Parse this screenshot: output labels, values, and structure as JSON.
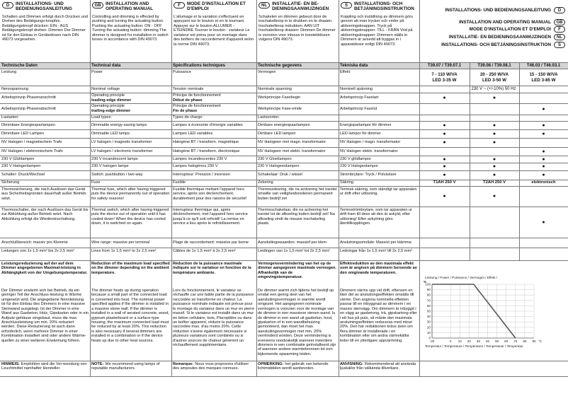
{
  "header": {
    "columns": [
      {
        "lang": "D",
        "title": "INSTALLATIONS- UND BEDIENUNGSANLEITUNG",
        "text": "Schalten und Dimmen erfolgt durch Drücken und Drehen des Betätigungs-knopfes. Betätigungsknopf drücken: EIN - AUS Betätigungsknopf drehen: Dimmen Der Dimmer ist für den Einbau in Gerätedosen nach DIN 49073 vorgesehen."
      },
      {
        "lang": "GB",
        "title": "INSTALLATION AND OPERATING MANUAL",
        "text": "Controlling and dimming is effected by pushing and turning the actuating button. Pushing the actuating button: ON - OFF Turning the actuating button: dimming The dimmer is designed for installation in switch boxes in accordance with DIN 49073."
      },
      {
        "lang": "F",
        "title": "MODE D'INSTALLATION ET D'EMPLOI",
        "text": "L'allumage et la variation s'effectuent en appuyant sur le bouton et en le tournant. Appuyer sur le bouton ALLUMER - ETEINDRE Tourner le bouton : variateur Le variateur est prévu pour un montage dans des boîtiers de raccordement d'appareil selon la norme DIN 49073."
      },
      {
        "lang": "NL",
        "title": "INSTALLATIE- EN BE-DIENINGSAANWIJZINGEN",
        "text": "Schakelen en dimmen gebeurt door de inschakelknop in te drukken en te draaien. Inschakelknop indrukken: AAN UIT Inschakelknop draaien: Dimmen De dimmer is voorzien voor inbouw in toestelddozen volgens DIN 49073."
      },
      {
        "lang": "S",
        "title": "INSTALLATIONS- OCH BETJÄNINGSINSTRUKTION",
        "text": "Koppling och inställning av dimmern görs genom att man trycker och vrider på aktiveringsknappen. Tryck på aktiveringsknappen: TILL - FRÅN Vrid på aktiveringsknappen: Dimmern ställs in Dimmern är avsedd att byggas in i apparatdosor enligt DIN 49073."
      }
    ],
    "title_block": [
      {
        "text": "INSTALLATIONS- UND BEDIENUNGSANLEITUNG",
        "lang": "D"
      },
      {
        "text": "INSTALLATION AND OPERATING MANUAL",
        "lang": "GB"
      },
      {
        "text": "MODE D'INSTALLATION ET D'EMPLOI",
        "lang": "F"
      },
      {
        "text": "INSTALLATIE- EN BEDIENINGSAANWIJZINGEN",
        "lang": "NL"
      },
      {
        "text": "INSTALLATIONS- OCH BETJÄNINGSINSTRUKTION",
        "lang": "S"
      }
    ]
  },
  "table": {
    "header": [
      "Technische Daten",
      "Technical data",
      "Spécifications techniques",
      "Technische gegevens",
      "Tekniska data",
      "T39.07 / T39.07.1",
      "T39.08 / T39.08.1",
      "T46.03 / T46.03.1"
    ],
    "rows": [
      {
        "cells": [
          "Leistung",
          "Power",
          "Puissance",
          "Vermogen",
          "Effekt"
        ],
        "products": [
          [
            "7 - 110 W/VA",
            "LED 3-35 W"
          ],
          [
            "20 - 250 W/VA",
            "LED 3-50 W"
          ],
          [
            "15 - 150 W/VA",
            "LED 3-85 W"
          ]
        ]
      },
      {
        "cells": [
          "Nennspannung",
          "Nominal voltage",
          "Tension nominale",
          "Nominale spanning",
          "Nominell spänning"
        ],
        "span": "230 V ~ (+/-10%) 50 Hz"
      },
      {
        "cells": [
          "Arbeitsprinzip Phasenanschnitt",
          [
            "Operating principle",
            "leading-edge dimmer"
          ],
          [
            "Principe de fonctionnement",
            "Début de phase"
          ],
          "Werkprincipe Fasebegin",
          "Arbetsprincip Fasstart"
        ],
        "products": [
          "●",
          "●",
          null
        ]
      },
      {
        "cells": [
          "Arbeitsprinzip Phasenabschnitt",
          [
            "Operating principle",
            "trailing-edge dimmer"
          ],
          [
            "Principe de fonctionnement",
            "Fin de phase"
          ],
          "Werkprincipe Fase-einde",
          "Arbetsprincip Fasslut"
        ],
        "products": [
          null,
          null,
          "●"
        ]
      },
      {
        "cells": [
          "Lastarten:",
          "Load types:",
          "Types de charge:",
          "Lastsoorten:",
          null
        ],
        "products": [
          null,
          null,
          null
        ]
      },
      {
        "cells": [
          "Dimmbare Energiesparlampen",
          "Dimmable energy-saving lamps",
          "Lampes à économie d'énergie variables",
          "Dimbare energiespaarlampen",
          "Energisparlampor för dimmer"
        ],
        "products": [
          "●",
          "●",
          "●"
        ]
      },
      {
        "cells": [
          "Dimmbare LED Lampen",
          "Dimmable LED lamps",
          "Lampes LED variables",
          "Dimbare LED lampen",
          "LED lampor för dimmer"
        ],
        "products": [
          "●",
          "●",
          "●"
        ]
      },
      {
        "cells": [
          "NV Halogen / magnetischem Trafo",
          "LV halogen / magnetic transformer",
          "Halogène BT / transform. magnétique",
          "NV Halogeen met magn. transformator",
          "NV Halogen / magn. transformator"
        ],
        "products": [
          "●",
          "●",
          null
        ]
      },
      {
        "cells": [
          "NV Halogen / elektronischem Trafo",
          "LV halogen / electronic transformer",
          "Halogène BT / transform. électronique",
          "NV Halogeen met elektr. transformator",
          "NV Halogen elektr. transformator"
        ],
        "products": [
          null,
          null,
          "●"
        ]
      },
      {
        "cells": [
          "230 V Glühlampen",
          "230 V incandescent lamps",
          "Lampes incandescentes 230 V",
          "230 V Gloeilampen",
          "230 V glödlampor"
        ],
        "products": [
          "●",
          "●",
          "●"
        ]
      },
      {
        "cells": [
          "230 V Halogenlampen",
          "230 V halogen lamps",
          "Lampes halogènes 230 V",
          "230 V Halogeenlampen",
          "230 V Halogenlampor"
        ],
        "products": [
          "●",
          "●",
          "●"
        ]
      },
      {
        "cells": [
          "Schalter: Druck/Wechsel",
          "Switch: pushbutton / two-way",
          "Interrupteur: Pression / inversion",
          "Schakelaar: Druk / wissel",
          "Strömbrytare: Tryck / Polväxlare"
        ],
        "products": [
          "●",
          "●",
          "●"
        ]
      },
      {
        "cells": [
          "Sicherung",
          "Fuse",
          "Fusible",
          "Zekering",
          "Säkring"
        ],
        "products": [
          "T1AH 250 V",
          "T2AH 250 V",
          "elektronisch"
        ]
      },
      {
        "cells": [
          "Thermosicherung, die nach Auslösen das Gerät aus Sicherheitsgründen dauerhaft außer Betrieb setzt.",
          "Thermal fuse, which after having triggered puts the device permanently out of operation for safety reasons!",
          "Fusible thermique mettant l'appareil hors service, après son déclenchement, durablement pour des raisons de sécurité!",
          "Thermozekering, die na activering het toestel omwille van veiligheidsredenen permanent buiten bedrijf zet",
          "Termisk säkring, som ständigt tar apparaten ur drift efter utlösning."
        ],
        "products": [
          "●",
          "●",
          null
        ]
      },
      {
        "cells": [
          "Thermoschalter, der nach Auslösen das Gerät bis zur Abkühlung außer Betrieb setzt. Nach Abkühlung erfolgt die Wiedereinschaltung.",
          "Thermal switch, which after having triggered puts the device out of operation until it has cooled down! When the device has cooled down, it is switched on again.",
          "Interrupteur thermique qui, après déclenchement, met l'appareil hors service jusqu'à ce qu'il soit refroidi! La remise en service a lieu après le refroidissement.",
          "Thermoschakelaar, die na activering het toestel tot de afkoeling buiten bedrijf zet! Na afkoeling vindt de nieuwe inschakeling plaats.",
          "Termoströmbrytare, som tar apparaten ur drift fram till dess att den är avkyld, efter utlösning! Efter avkylning görs återtillkopplingen."
        ],
        "products": [
          null,
          null,
          "●"
        ]
      },
      {
        "cells": [
          "Anschlußbereich: massiv pro Klemme",
          "Wire range: massive per terminal",
          "Plage de raccordement: massive par borne",
          "Aansluitingswaarden: massief per klem",
          "Anslutningsområde: Massivt per klämma"
        ]
      },
      {
        "cells": [
          "Leitungen von 1x 1,5 mm² bis 2x 2,5 mm²",
          "Lines from 1x 1,5 mm² to 2x 2,5 mm²",
          "Câbles de 1x 1,5 mm² à 2x 2,5 mm²",
          "Leidingen van 1x 1,5 mm² tot 2x 2,5 mm²",
          "Ledningar från 1x 1,5 mm² till 2x 2,5 mm²"
        ]
      }
    ]
  },
  "derating": [
    {
      "heading": "Leistungsreduzierung auf der auf dem Dimmer angegebenen Maximal-leistung in Abhängigkeit von der Umgebungstemperatur.",
      "text": "Der Dimmer erwärmt sich bei Betrieb, da ein geringer Teil der Anschluss-leistung in Wärme umgesetzt wird. Die angegebene Nennleistung ist für den Einbau des Dimmers in eine massive Steinwand ausgelegt. Ist der Dimmer in eine Wand aus Gasbeton, Holz, Gipskarton oder in ein Aufputz-gehäuse eingebaut, muss die max. Anschlussleistung um min. 20% reduziert werden. Diese Reduzierung ist auch dann erforderlich, wenn mehrere Dimmer in einer Kombination installiert sind oder andere Wärme-quellen zu einer weiteren Erwärmung führen."
    },
    {
      "heading": "Reduction of the maximum load specified on the dimmer depending on the ambient temperature.",
      "text": "The dimmer heats up during operation because a small part of the connected load is converted into heat. The nominal power specified applies if the dimmer is installed in a massive stone wall. If the dimmer is installed in a wall of aerated concrete, wood, gypsum plasterboard or a surface-type housing, the maximum connected load must be reduced by at least 20%. This reduction is also necessary if several dimmers are installed in a combination or if the device heats up due to other heat sources."
    },
    {
      "heading": "Réduction de la puissance maximale indiquée sur le variateur en fonction de la température ambiante.",
      "text": "Lors du fonctionnement, le variateur se réchauffe car une faible partie de la puissance raccordée se transforme en chaleur. La puissance nominale indiquée est prévue pour le montage du variateur dans un mur en pierre massif. Si le variateur est installé dans un mur en béton cellulaire, bois, Placoplâtre ou dans un boîtier apparent, réduire la puissance raccordée max. d'au moins 20%. Cette réduction s'avère également nécessaire si plusieurs variateurs sont combinés ou si d'autres sources de chaleur génèrent un réchauffement supplémentaire."
    },
    {
      "heading": "Vermogensvermindering van het op de dimmer aangegeven maximale vermogen. Afhankelijk van de omgevingstemperatuur.",
      "text": "De dimmer warmt zich tijdens het bedrijf op omdat een gering deel van het aansluitingsvermogen in warmte wordt omgezet. Het aangegeven nominale vermogen is voorzien voor de montage van de dimmer in een massieve stenen wand. Is de dimmer in een wand uit gasbeton, hout, gipskarton of in een wandbehuizing gemonteerd, dan moet het max. aansluitingsvermogen met min. 20% verminderd worden. Deze vermindering is eveneens noodzakelijk wanneer meerdere dimmers in een combinatie geïnstalleerd zijn of wanneer andere warmtebronnen tot een bijkomende opwarming leiden."
    },
    {
      "heading": "Effektreduktion av den maximala effekt som är angiven på dimmern beroende av den omgivande temperaturen.",
      "text": "Dimmern värms upp vid drift, eftersom en liten del av anslutningseffekten omsätts till värme. Den angivna nominella effekten passar till en inbyggnad av dimmern i en massiv stenvägg. Om dimmern är inbyggd i en vägg av gasbetong, trä, gipskartong eller i ett hus på puts, så måste den maximala anslutningseffekten reduceras med minst 20%. Den här reduktionen krävs även om flera dimmer är installerade i en kombination eller om andra värmekällor leder till en ytterligare uppvärmning."
    }
  ],
  "chart_data": {
    "type": "line",
    "title": "Leistung / Power / Puissance / Vermogen / Effekt /",
    "y_label": "%",
    "x_unit": "°C",
    "x_label": "Temperatur / Temperature / Température / Temperatuur / Temperatur",
    "x": [
      -20,
      25,
      70
    ],
    "values": [
      100,
      100,
      0
    ],
    "color": "#555555",
    "xlim": [
      -20,
      90
    ],
    "ylim": [
      0,
      100
    ],
    "xticks": [
      -20,
      0,
      10,
      20,
      30,
      40,
      50,
      60,
      70,
      80,
      90
    ],
    "yticks": [
      0,
      10,
      20,
      30,
      40,
      50,
      60,
      70,
      80,
      90,
      100
    ],
    "grid": true
  },
  "notes": [
    {
      "label": "HINWEIS:",
      "text": "Empfohlen wird die Ver-wendung von Leuchtmittel namhafter Hersteller."
    },
    {
      "label": "NOTE:",
      "text": "We recommend using lamps of reputable manufacturers."
    },
    {
      "label": "Remarque:",
      "text": "Nous vous proposons d'utiliser des ampoules des marques connues."
    },
    {
      "label": "OPMERKING:",
      "text": "het gebruik van bekende lichtmiddelen wordt aanbevolen."
    },
    {
      "label": "ANVISNING:",
      "text": "Rekommenderat att använda ljuskällor från välkända tillverkare."
    }
  ]
}
